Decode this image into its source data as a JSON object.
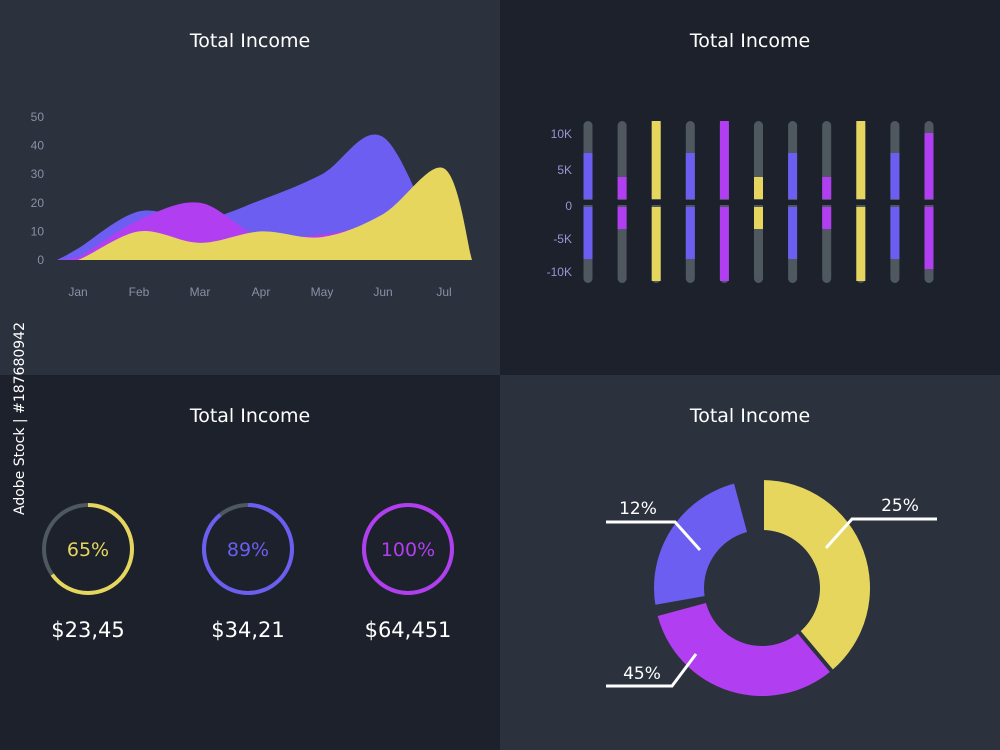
{
  "colors": {
    "purple": "#6c5ef0",
    "magenta": "#b23ef2",
    "yellow": "#e6d65e",
    "track": "#4f575f",
    "axis": "#8c8fa6",
    "axisPurple": "#9d93d6"
  },
  "panels": {
    "area": {
      "title": "Total Income"
    },
    "bars": {
      "title": "Total Income"
    },
    "rings": {
      "title": "Total Income"
    },
    "donut": {
      "title": "Total Income"
    }
  },
  "watermark": "Adobe Stock | #187680942",
  "chart_data": [
    {
      "type": "area",
      "categories": [
        "Jan",
        "Feb",
        "Mar",
        "Apr",
        "May",
        "Jun",
        "Jul"
      ],
      "yticks": [
        0,
        10,
        20,
        30,
        40,
        50
      ],
      "ylim": [
        0,
        55
      ],
      "series": [
        {
          "color": "purple",
          "values": [
            4,
            17,
            14,
            21,
            30,
            43,
            3
          ]
        },
        {
          "color": "magenta",
          "values": [
            1,
            14,
            20,
            8,
            9,
            11,
            1
          ]
        },
        {
          "color": "yellow",
          "values": [
            0,
            10,
            6,
            10,
            8,
            16,
            32
          ]
        }
      ]
    },
    {
      "type": "bar",
      "yticks": [
        "10K",
        "5K",
        "0",
        "-5K",
        "-10K"
      ],
      "ylim": [
        -10000,
        10000
      ],
      "bars": [
        {
          "color": "purple",
          "value": 6000
        },
        {
          "color": "magenta",
          "value": 3000
        },
        {
          "color": "yellow",
          "value": 10000
        },
        {
          "color": "purple",
          "value": 6000
        },
        {
          "color": "magenta",
          "value": 10000
        },
        {
          "color": "yellow",
          "value": 3000
        },
        {
          "color": "purple",
          "value": 6000
        },
        {
          "color": "magenta",
          "value": 3000
        },
        {
          "color": "yellow",
          "value": 10000
        },
        {
          "color": "purple",
          "value": 6000
        },
        {
          "color": "magenta",
          "value": 8500
        }
      ]
    },
    {
      "type": "pie",
      "items": [
        {
          "label": "65%",
          "percent": 65,
          "color": "yellow",
          "amount": "$23,45"
        },
        {
          "label": "89%",
          "percent": 89,
          "color": "purple",
          "amount": "$34,21"
        },
        {
          "label": "100%",
          "percent": 100,
          "color": "magenta",
          "amount": "$64,451"
        }
      ]
    },
    {
      "type": "pie",
      "slices": [
        {
          "label": "25%",
          "value": 25,
          "color": "yellow"
        },
        {
          "label": "45%",
          "value": 45,
          "color": "magenta"
        },
        {
          "label": "12%",
          "value": 12,
          "color": "purple"
        }
      ]
    }
  ]
}
